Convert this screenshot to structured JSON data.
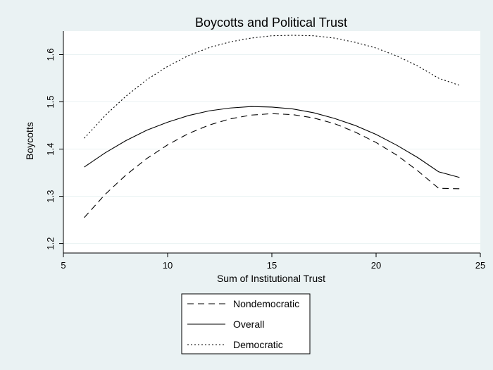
{
  "chart_data": {
    "type": "line",
    "title": "Boycotts and Political Trust",
    "xlabel": "Sum of Institutional Trust",
    "ylabel": "Boycotts",
    "xlim": [
      5,
      25
    ],
    "ylim": [
      1.18,
      1.65
    ],
    "xticks": [
      5,
      10,
      15,
      20,
      25
    ],
    "yticks": [
      1.2,
      1.3,
      1.4,
      1.5,
      1.6
    ],
    "xtick_labels": [
      "5",
      "10",
      "15",
      "20",
      "25"
    ],
    "ytick_labels": [
      "1.2",
      "1.3",
      "1.4",
      "1.5",
      "1.6"
    ],
    "grid": "horizontal",
    "legend_position": "bottom",
    "x": [
      6,
      7,
      8,
      9,
      10,
      11,
      12,
      13,
      14,
      15,
      16,
      17,
      18,
      19,
      20,
      21,
      22,
      23,
      24
    ],
    "series": [
      {
        "name": "Nondemocratic",
        "dash": "long-dash",
        "values": [
          1.255,
          1.304,
          1.345,
          1.38,
          1.409,
          1.433,
          1.451,
          1.464,
          1.472,
          1.475,
          1.473,
          1.466,
          1.454,
          1.436,
          1.414,
          1.387,
          1.354,
          1.317,
          1.316
        ]
      },
      {
        "name": "Overall",
        "dash": "solid",
        "values": [
          1.362,
          1.392,
          1.418,
          1.44,
          1.457,
          1.471,
          1.481,
          1.487,
          1.49,
          1.489,
          1.485,
          1.477,
          1.465,
          1.45,
          1.431,
          1.408,
          1.382,
          1.352,
          1.34
        ]
      },
      {
        "name": "Democratic",
        "dash": "dotted",
        "values": [
          1.423,
          1.471,
          1.512,
          1.547,
          1.575,
          1.598,
          1.615,
          1.627,
          1.635,
          1.64,
          1.641,
          1.64,
          1.635,
          1.626,
          1.614,
          1.597,
          1.576,
          1.55,
          1.535
        ]
      }
    ]
  },
  "colors": {
    "background": "#eaf2f3",
    "plot_area": "#ffffff",
    "lines": "#000000",
    "grid": "#eaf2f3"
  }
}
